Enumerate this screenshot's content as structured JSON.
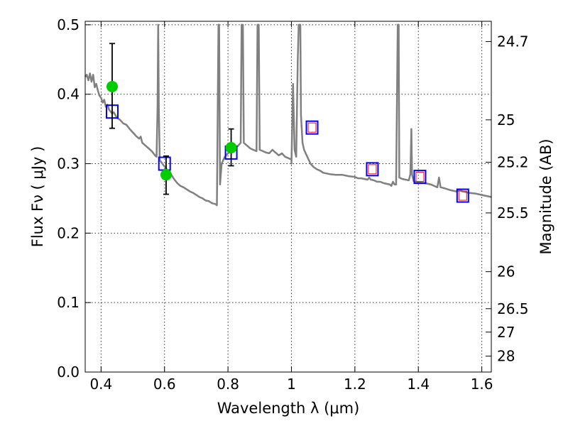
{
  "chart_data": {
    "type": "scatter",
    "xlabel": "Wavelength  λ (μm)",
    "ylabel": "Flux  Fν  ( μJy )",
    "ylabel_right": "Magnitude (AB)",
    "xlim": [
      0.35,
      1.63
    ],
    "ylim": [
      0.0,
      0.505
    ],
    "grid": true,
    "x_ticks": [
      0.4,
      0.6,
      0.8,
      1.0,
      1.2,
      1.4,
      1.6
    ],
    "x_tick_labels": [
      "0.4",
      "0.6",
      "0.8",
      "1",
      "1.2",
      "1.4",
      "1.6"
    ],
    "y_ticks": [
      0.0,
      0.1,
      0.2,
      0.3,
      0.4,
      0.5
    ],
    "y_tick_labels": [
      "0.0",
      "0.1",
      "0.2",
      "0.3",
      "0.4",
      "0.5"
    ],
    "right_ticks": [
      {
        "label": "24.7",
        "flux": 0.4758
      },
      {
        "label": "25",
        "flux": 0.3631
      },
      {
        "label": "25.2",
        "flux": 0.302
      },
      {
        "label": "25.5",
        "flux": 0.2291
      },
      {
        "label": "26",
        "flux": 0.1445
      },
      {
        "label": "26.5",
        "flux": 0.0912
      },
      {
        "label": "27",
        "flux": 0.0575
      },
      {
        "label": "28",
        "flux": 0.0229
      }
    ],
    "colors": {
      "model": "#808080",
      "observed": "#00cc00",
      "model_box": "#0000ff",
      "model_box_inner": "#ff0000",
      "errorbar": "#000000"
    },
    "series": [
      {
        "kind": "line",
        "points": [
          [
            0.35,
            0.425
          ],
          [
            0.355,
            0.428
          ],
          [
            0.36,
            0.42
          ],
          [
            0.365,
            0.43
          ],
          [
            0.37,
            0.418
          ],
          [
            0.375,
            0.428
          ],
          [
            0.38,
            0.41
          ],
          [
            0.385,
            0.415
          ],
          [
            0.39,
            0.405
          ],
          [
            0.395,
            0.398
          ],
          [
            0.4,
            0.395
          ],
          [
            0.405,
            0.388
          ],
          [
            0.41,
            0.392
          ],
          [
            0.415,
            0.382
          ],
          [
            0.42,
            0.385
          ],
          [
            0.425,
            0.378
          ],
          [
            0.43,
            0.375
          ],
          [
            0.435,
            0.372
          ],
          [
            0.44,
            0.374
          ],
          [
            0.45,
            0.366
          ],
          [
            0.46,
            0.363
          ],
          [
            0.47,
            0.358
          ],
          [
            0.48,
            0.356
          ],
          [
            0.49,
            0.35
          ],
          [
            0.5,
            0.345
          ],
          [
            0.51,
            0.34
          ],
          [
            0.52,
            0.336
          ],
          [
            0.525,
            0.339
          ],
          [
            0.53,
            0.33
          ],
          [
            0.54,
            0.326
          ],
          [
            0.55,
            0.322
          ],
          [
            0.56,
            0.318
          ],
          [
            0.57,
            0.312
          ],
          [
            0.575,
            0.31
          ],
          [
            0.578,
            0.38
          ],
          [
            0.58,
            0.5
          ],
          [
            0.582,
            0.38
          ],
          [
            0.585,
            0.305
          ],
          [
            0.59,
            0.302
          ],
          [
            0.6,
            0.296
          ],
          [
            0.61,
            0.29
          ],
          [
            0.62,
            0.285
          ],
          [
            0.63,
            0.278
          ],
          [
            0.64,
            0.272
          ],
          [
            0.65,
            0.268
          ],
          [
            0.66,
            0.266
          ],
          [
            0.67,
            0.263
          ],
          [
            0.68,
            0.26
          ],
          [
            0.69,
            0.258
          ],
          [
            0.7,
            0.255
          ],
          [
            0.71,
            0.252
          ],
          [
            0.72,
            0.25
          ],
          [
            0.73,
            0.247
          ],
          [
            0.74,
            0.246
          ],
          [
            0.75,
            0.243
          ],
          [
            0.76,
            0.242
          ],
          [
            0.765,
            0.24
          ],
          [
            0.77,
            0.5
          ],
          [
            0.772,
            0.5
          ],
          [
            0.775,
            0.27
          ],
          [
            0.78,
            0.3
          ],
          [
            0.79,
            0.31
          ],
          [
            0.8,
            0.315
          ],
          [
            0.81,
            0.318
          ],
          [
            0.82,
            0.322
          ],
          [
            0.83,
            0.325
          ],
          [
            0.84,
            0.33
          ],
          [
            0.843,
            0.5
          ],
          [
            0.847,
            0.5
          ],
          [
            0.85,
            0.33
          ],
          [
            0.86,
            0.326
          ],
          [
            0.87,
            0.322
          ],
          [
            0.88,
            0.32
          ],
          [
            0.89,
            0.318
          ],
          [
            0.893,
            0.5
          ],
          [
            0.897,
            0.5
          ],
          [
            0.9,
            0.32
          ],
          [
            0.91,
            0.318
          ],
          [
            0.92,
            0.316
          ],
          [
            0.93,
            0.315
          ],
          [
            0.94,
            0.32
          ],
          [
            0.95,
            0.316
          ],
          [
            0.96,
            0.312
          ],
          [
            0.97,
            0.315
          ],
          [
            0.98,
            0.31
          ],
          [
            0.99,
            0.308
          ],
          [
            1.0,
            0.306
          ],
          [
            1.0,
            0.3
          ],
          [
            1.005,
            0.415
          ],
          [
            1.01,
            0.32
          ],
          [
            1.015,
            0.31
          ],
          [
            1.02,
            0.45
          ],
          [
            1.023,
            0.5
          ],
          [
            1.028,
            0.5
          ],
          [
            1.03,
            0.37
          ],
          [
            1.035,
            0.33
          ],
          [
            1.04,
            0.32
          ],
          [
            1.05,
            0.31
          ],
          [
            1.06,
            0.3
          ],
          [
            1.07,
            0.295
          ],
          [
            1.08,
            0.292
          ],
          [
            1.09,
            0.29
          ],
          [
            1.1,
            0.287
          ],
          [
            1.12,
            0.285
          ],
          [
            1.14,
            0.284
          ],
          [
            1.16,
            0.284
          ],
          [
            1.18,
            0.282
          ],
          [
            1.2,
            0.281
          ],
          [
            1.21,
            0.279
          ],
          [
            1.22,
            0.279
          ],
          [
            1.23,
            0.278
          ],
          [
            1.24,
            0.277
          ],
          [
            1.245,
            0.28
          ],
          [
            1.25,
            0.277
          ],
          [
            1.26,
            0.276
          ],
          [
            1.27,
            0.274
          ],
          [
            1.28,
            0.274
          ],
          [
            1.29,
            0.272
          ],
          [
            1.3,
            0.271
          ],
          [
            1.31,
            0.27
          ],
          [
            1.315,
            0.268
          ],
          [
            1.32,
            0.274
          ],
          [
            1.325,
            0.27
          ],
          [
            1.33,
            0.27
          ],
          [
            1.335,
            0.5
          ],
          [
            1.338,
            0.5
          ],
          [
            1.34,
            0.28
          ],
          [
            1.35,
            0.278
          ],
          [
            1.36,
            0.277
          ],
          [
            1.37,
            0.276
          ],
          [
            1.375,
            0.285
          ],
          [
            1.378,
            0.35
          ],
          [
            1.38,
            0.285
          ],
          [
            1.385,
            0.275
          ],
          [
            1.39,
            0.274
          ],
          [
            1.4,
            0.273
          ],
          [
            1.42,
            0.272
          ],
          [
            1.44,
            0.27
          ],
          [
            1.46,
            0.266
          ],
          [
            1.465,
            0.28
          ],
          [
            1.47,
            0.266
          ],
          [
            1.48,
            0.265
          ],
          [
            1.5,
            0.262
          ],
          [
            1.52,
            0.26
          ],
          [
            1.53,
            0.262
          ],
          [
            1.54,
            0.26
          ],
          [
            1.56,
            0.258
          ],
          [
            1.58,
            0.257
          ],
          [
            1.6,
            0.255
          ],
          [
            1.63,
            0.252
          ]
        ]
      },
      {
        "kind": "observed",
        "points": [
          {
            "x": 0.435,
            "y": 0.411,
            "yerr_low": 0.351,
            "yerr_high": 0.473
          },
          {
            "x": 0.605,
            "y": 0.284,
            "yerr_low": 0.256,
            "yerr_high": 0.311
          },
          {
            "x": 0.81,
            "y": 0.323,
            "yerr_low": 0.297,
            "yerr_high": 0.35
          }
        ]
      },
      {
        "kind": "model_box",
        "points": [
          {
            "x": 0.435,
            "y": 0.375,
            "inner": false
          },
          {
            "x": 0.6,
            "y": 0.3,
            "inner": false
          },
          {
            "x": 0.81,
            "y": 0.316,
            "inner": false
          },
          {
            "x": 1.065,
            "y": 0.352,
            "inner": true
          },
          {
            "x": 1.255,
            "y": 0.292,
            "inner": true
          },
          {
            "x": 1.405,
            "y": 0.281,
            "inner": true
          },
          {
            "x": 1.54,
            "y": 0.254,
            "inner": true
          }
        ]
      }
    ]
  }
}
